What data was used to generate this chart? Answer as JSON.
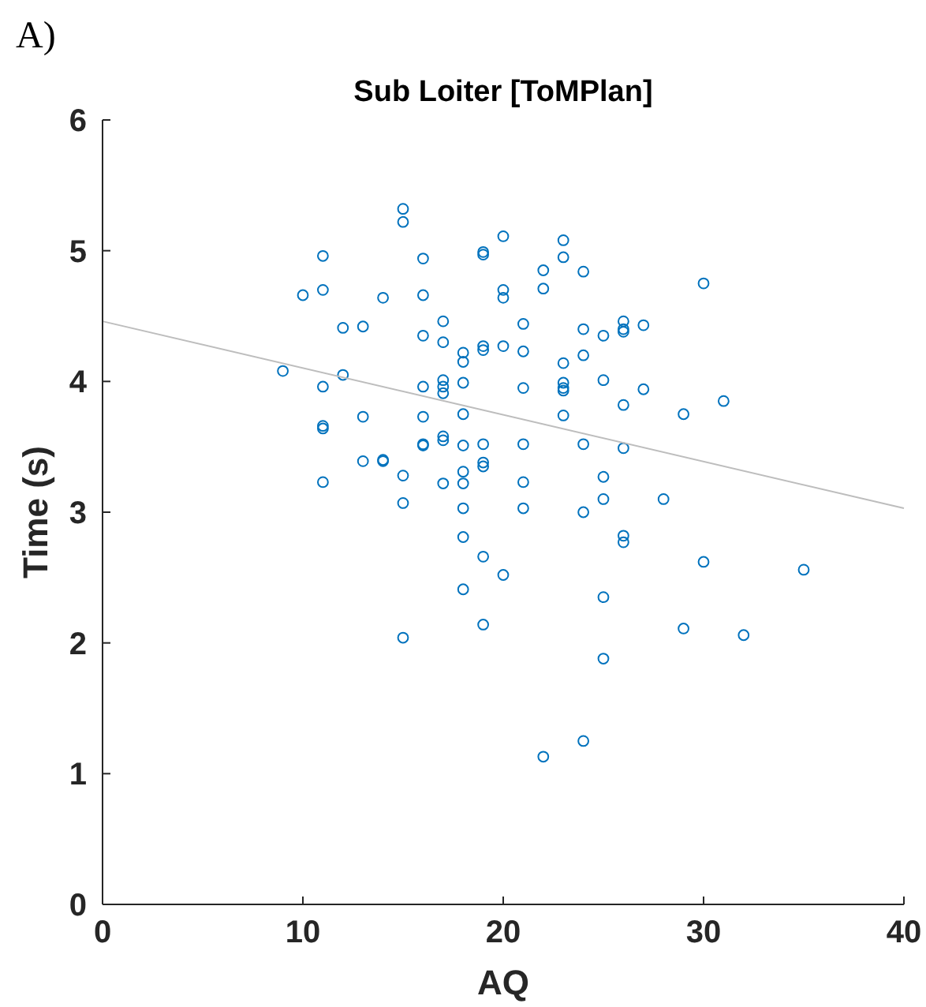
{
  "chart_data": {
    "type": "scatter",
    "title": "Sub Loiter [ToMPlan]",
    "xlabel": "AQ",
    "ylabel": "Time (s)",
    "annotations": [
      "A)"
    ],
    "xlim": [
      0,
      40
    ],
    "ylim": [
      0,
      6
    ],
    "xticks": [
      0,
      10,
      20,
      30,
      40
    ],
    "yticks": [
      0,
      1,
      2,
      3,
      4,
      5,
      6
    ],
    "grid": false,
    "marker": "circle",
    "series": [
      {
        "color": "#0072bd",
        "x": [
          9,
          10,
          11,
          11,
          11,
          11,
          11,
          11,
          12,
          12,
          13,
          13,
          13,
          14,
          14,
          14,
          15,
          15,
          15,
          15,
          15,
          16,
          16,
          16,
          16,
          16,
          16,
          16,
          17,
          17,
          17,
          17,
          17,
          17,
          17,
          17,
          18,
          18,
          18,
          18,
          18,
          18,
          18,
          18,
          18,
          18,
          19,
          19,
          19,
          19,
          19,
          19,
          19,
          19,
          19,
          20,
          20,
          20,
          20,
          20,
          21,
          21,
          21,
          21,
          21,
          21,
          22,
          22,
          22,
          23,
          23,
          23,
          23,
          23,
          23,
          23,
          24,
          24,
          24,
          24,
          24,
          24,
          25,
          25,
          25,
          25,
          25,
          25,
          26,
          26,
          26,
          26,
          26,
          26,
          26,
          27,
          27,
          28,
          29,
          29,
          30,
          30,
          31,
          32,
          35
        ],
        "values": [
          4.08,
          4.66,
          4.96,
          4.7,
          3.96,
          3.66,
          3.64,
          3.23,
          4.41,
          4.05,
          4.42,
          3.73,
          3.39,
          4.64,
          3.4,
          3.39,
          5.32,
          5.22,
          3.28,
          3.07,
          2.04,
          4.94,
          4.66,
          4.35,
          3.96,
          3.73,
          3.51,
          3.52,
          4.46,
          4.3,
          4.01,
          3.96,
          3.91,
          3.58,
          3.55,
          3.22,
          4.15,
          4.22,
          3.99,
          3.75,
          3.51,
          3.31,
          3.22,
          3.03,
          2.81,
          2.41,
          4.99,
          4.97,
          4.27,
          4.24,
          3.52,
          3.38,
          3.35,
          2.66,
          2.14,
          5.11,
          4.7,
          4.64,
          4.27,
          2.52,
          4.44,
          4.23,
          3.95,
          3.52,
          3.23,
          3.03,
          4.85,
          4.71,
          1.13,
          5.08,
          4.95,
          4.14,
          3.99,
          3.95,
          3.93,
          3.74,
          4.84,
          4.4,
          4.2,
          3.52,
          3.0,
          1.25,
          4.35,
          4.01,
          3.27,
          3.1,
          2.35,
          1.88,
          4.46,
          4.4,
          4.38,
          3.82,
          3.49,
          2.82,
          2.77,
          4.43,
          3.94,
          3.1,
          3.75,
          2.11,
          4.75,
          2.62,
          3.85,
          2.06,
          2.56
        ]
      },
      {
        "type": "line",
        "color": "#bdbdbd",
        "marker": "none",
        "x": [
          0,
          40
        ],
        "values": [
          4.46,
          3.03
        ]
      }
    ]
  }
}
